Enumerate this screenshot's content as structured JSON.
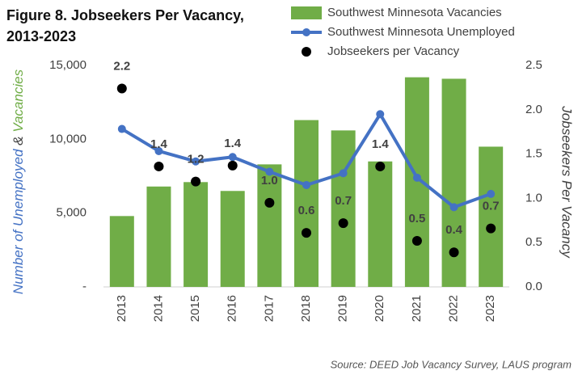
{
  "chart_data": {
    "type": "bar-line-scatter",
    "title": [
      "Figure 8. Jobseekers Per Vacancy,",
      "2013-2023"
    ],
    "categories": [
      "2013",
      "2014",
      "2015",
      "2016",
      "2017",
      "2018",
      "2019",
      "2020",
      "2021",
      "2022",
      "2023"
    ],
    "series": [
      {
        "name": "Southwest Minnesota Vacancies",
        "type": "bar",
        "color": "#70ad47",
        "values": [
          4800,
          6800,
          7100,
          6500,
          8300,
          11300,
          10600,
          8500,
          14200,
          14100,
          9500
        ]
      },
      {
        "name": "Southwest Minnesota Unemployed",
        "type": "line",
        "color": "#4472c4",
        "values": [
          10700,
          9200,
          8500,
          8800,
          7800,
          6900,
          7700,
          11700,
          7400,
          5400,
          6300
        ]
      },
      {
        "name": "Jobseekers per Vacancy",
        "type": "scatter",
        "color": "#000000",
        "axis": "y2",
        "values": [
          2.24,
          1.36,
          1.19,
          1.37,
          0.95,
          0.61,
          0.72,
          1.36,
          0.52,
          0.39,
          0.66
        ],
        "value_labels": [
          "2.2",
          "1.4",
          "1.2",
          "1.4",
          "1.0",
          "0.6",
          "0.7",
          "1.4",
          "0.5",
          "0.4",
          "0.7"
        ]
      }
    ],
    "y_label": [
      {
        "text": "Number of Unemployed",
        "color": "#4472c4"
      },
      {
        "text": "&",
        "color": "#404040"
      },
      {
        "text": "Vacancies",
        "color": "#70ad47"
      }
    ],
    "y2_label": "Jobseekers Per Vacancy",
    "ylim": [
      0,
      15000
    ],
    "yticks": [
      {
        "value": 0,
        "label": "-"
      },
      {
        "value": 5000,
        "label": "5,000"
      },
      {
        "value": 10000,
        "label": "10,000"
      },
      {
        "value": 15000,
        "label": "15,000"
      }
    ],
    "y2lim": [
      0,
      2.5
    ],
    "y2ticks": [
      {
        "value": 0,
        "label": "0.0"
      },
      0.5,
      {
        "value": 1,
        "label": "1.0"
      },
      1.5,
      {
        "value": 2,
        "label": "2.0"
      },
      2.5
    ],
    "source": "Source: DEED Job Vacancy Survey, LAUS program",
    "legend": "top-right"
  }
}
